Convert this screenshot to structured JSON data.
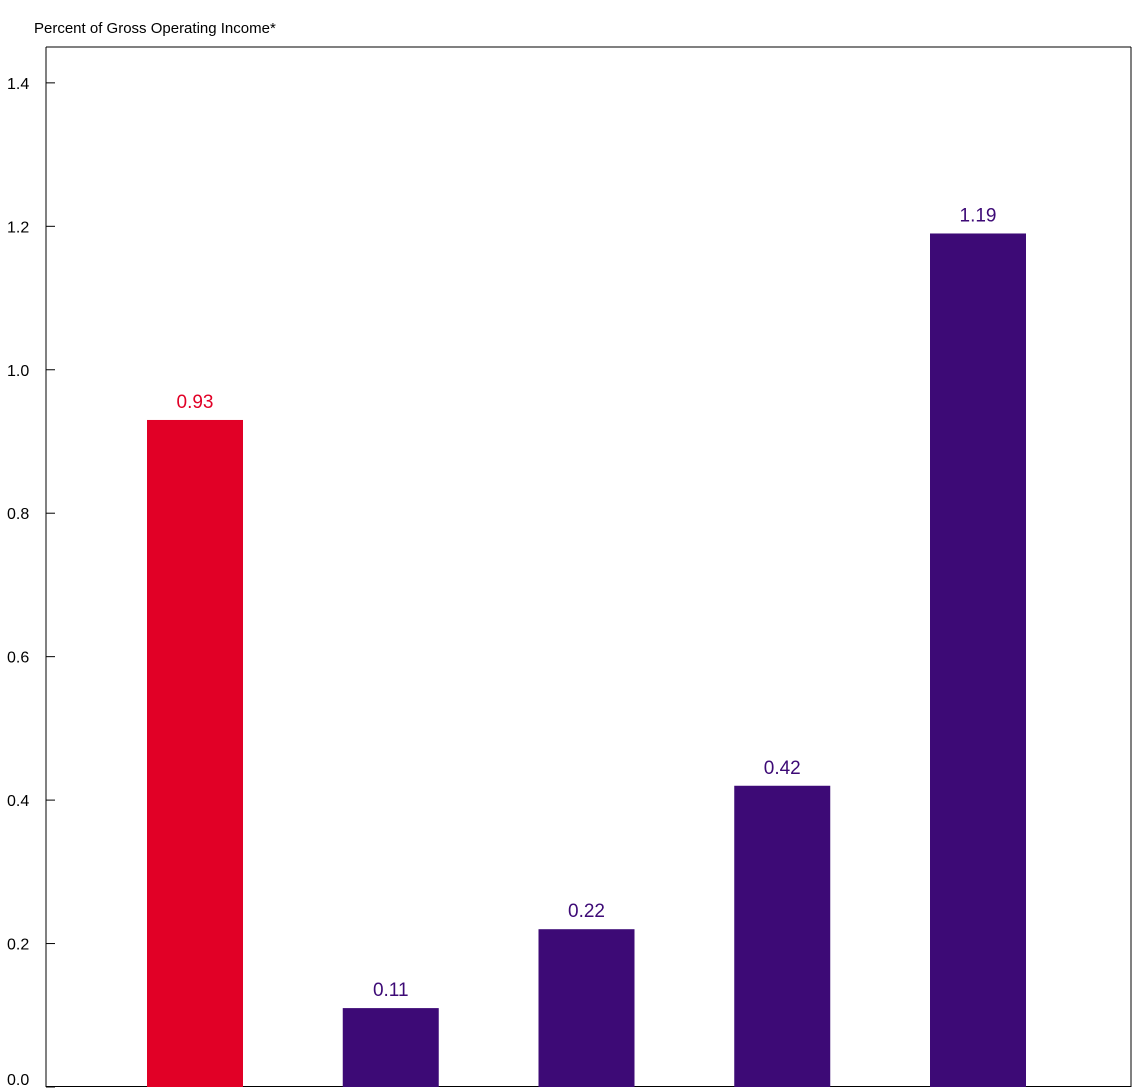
{
  "chart_data": {
    "type": "bar",
    "title": "Percent of Gross Operating Income*",
    "xlabel": "",
    "ylabel": "",
    "categories": [
      "",
      "",
      "",
      "",
      ""
    ],
    "values": [
      0.93,
      0.11,
      0.22,
      0.42,
      1.19
    ],
    "value_labels": [
      "0.93",
      "0.11",
      "0.22",
      "0.42",
      "1.19"
    ],
    "bar_colors": [
      "#E10026",
      "#3D0A76",
      "#3D0A76",
      "#3D0A76",
      "#3D0A76"
    ],
    "ylim": [
      0,
      1.45
    ],
    "yticks": [
      0.0,
      0.2,
      0.4,
      0.6,
      0.8,
      1.0,
      1.2,
      1.4
    ],
    "ytick_labels": [
      "0.0",
      "0.2",
      "0.4",
      "0.6",
      "0.8",
      "1.0",
      "1.2",
      "1.4"
    ],
    "grid": false,
    "legend": "none"
  }
}
